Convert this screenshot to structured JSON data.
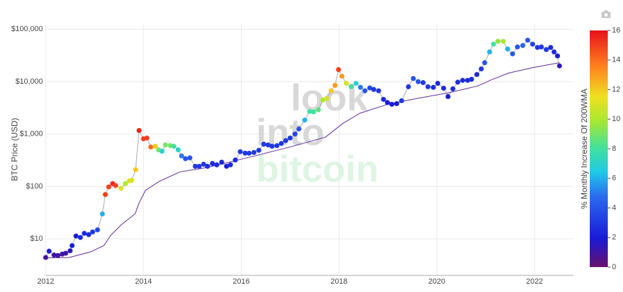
{
  "chart_data": {
    "type": "scatter",
    "y_label": "BTC Price (USD)",
    "colorbar_label": "% Monthly Increase Of 200WMA",
    "watermark": [
      "look",
      "into",
      "bitcoin"
    ],
    "log_y": true,
    "grid": true,
    "xlim": [
      2012,
      2022.79
    ],
    "xticks": [
      2012,
      2014,
      2016,
      2018,
      2020,
      2022
    ],
    "ylim": [
      2,
      125000
    ],
    "yticks": [
      {
        "value": 10,
        "label": "$10"
      },
      {
        "value": 100,
        "label": "$100"
      },
      {
        "value": 1000,
        "label": "$1,000"
      },
      {
        "value": 10000,
        "label": "$10,000"
      },
      {
        "value": 100000,
        "label": "$100,000"
      }
    ],
    "clim": [
      0,
      16
    ],
    "cticks": [
      0,
      2,
      4,
      6,
      8,
      10,
      12,
      14,
      16
    ],
    "colorscale": [
      [
        0,
        "#6b0f6b"
      ],
      [
        0.12,
        "#1a1ad6"
      ],
      [
        0.3,
        "#2a6cf0"
      ],
      [
        0.4,
        "#20c8e8"
      ],
      [
        0.5,
        "#40e0a0"
      ],
      [
        0.62,
        "#a8e830"
      ],
      [
        0.72,
        "#f0e020"
      ],
      [
        0.85,
        "#ff8020"
      ],
      [
        1,
        "#e8101a"
      ]
    ],
    "series": [
      {
        "color": "#aaaaaa",
        "x": [
          2012.0,
          2012.07,
          2012.17,
          2012.25,
          2012.34,
          2012.41,
          2012.5,
          2012.54,
          2012.62,
          2012.71,
          2012.79,
          2012.88,
          2012.96,
          2013.06,
          2013.16,
          2013.22,
          2013.29,
          2013.37,
          2013.43,
          2013.54,
          2013.63,
          2013.71,
          2013.76,
          2013.84,
          2013.91,
          2014.0,
          2014.07,
          2014.15,
          2014.24,
          2014.31,
          2014.38,
          2014.45,
          2014.55,
          2014.62,
          2014.71,
          2014.78,
          2014.86,
          2014.95,
          2015.06,
          2015.14,
          2015.23,
          2015.31,
          2015.41,
          2015.5,
          2015.6,
          2015.7,
          2015.78,
          2015.88,
          2015.98,
          2016.08,
          2016.16,
          2016.26,
          2016.36,
          2016.46,
          2016.55,
          2016.63,
          2016.73,
          2016.82,
          2016.91,
          2017.0,
          2017.1,
          2017.18,
          2017.3,
          2017.4,
          2017.48,
          2017.58,
          2017.67,
          2017.75,
          2017.84,
          2017.92,
          2017.99,
          2018.06,
          2018.15,
          2018.25,
          2018.35,
          2018.44,
          2018.53,
          2018.63,
          2018.71,
          2018.81,
          2018.91,
          2018.99,
          2019.08,
          2019.18,
          2019.28,
          2019.42,
          2019.52,
          2019.62,
          2019.72,
          2019.82,
          2019.93,
          2020.02,
          2020.14,
          2020.23,
          2020.33,
          2020.43,
          2020.53,
          2020.63,
          2020.71,
          2020.82,
          2020.91,
          2020.98,
          2021.08,
          2021.16,
          2021.25,
          2021.36,
          2021.45,
          2021.55,
          2021.65,
          2021.76,
          2021.86,
          2021.96,
          2022.06,
          2022.14,
          2022.24,
          2022.33,
          2022.4,
          2022.47,
          2022.51
        ],
        "values": [
          4.4,
          5.8,
          4.9,
          4.8,
          5.1,
          5.3,
          5.9,
          7.4,
          11.3,
          10.6,
          12.7,
          12,
          13.5,
          14.8,
          29.8,
          70,
          98,
          113,
          104,
          92,
          113,
          128,
          131,
          209,
          1170,
          810,
          840,
          566,
          585,
          499,
          470,
          620,
          600,
          585,
          500,
          382,
          338,
          351,
          242,
          242,
          265,
          242,
          274,
          258,
          290,
          242,
          258,
          320,
          460,
          432,
          430,
          445,
          490,
          640,
          620,
          585,
          600,
          660,
          750,
          840,
          1000,
          1250,
          1850,
          2700,
          2650,
          2920,
          4470,
          4770,
          6700,
          8500,
          17000,
          12700,
          9300,
          8000,
          9300,
          7800,
          6700,
          7600,
          7100,
          6700,
          4600,
          4000,
          3700,
          3800,
          4330,
          8000,
          11500,
          10000,
          9600,
          8000,
          7800,
          9300,
          7500,
          5200,
          7300,
          9800,
          10600,
          10600,
          11100,
          13700,
          17500,
          23000,
          37000,
          52000,
          59000,
          59000,
          42000,
          34000,
          46000,
          49000,
          62000,
          52000,
          45000,
          46000,
          41000,
          45000,
          37000,
          31000,
          20000
        ],
        "heat": [
          1,
          2,
          1,
          1,
          1,
          1,
          1.5,
          2,
          2,
          2.5,
          2.5,
          2.5,
          3,
          3.5,
          6,
          15,
          15,
          15.5,
          15,
          11,
          10,
          11,
          11,
          12,
          15.5,
          15,
          15,
          14,
          12,
          9,
          7,
          9,
          9,
          8,
          7,
          5,
          4,
          4,
          3,
          3,
          3,
          2.5,
          2.5,
          2.5,
          2.5,
          2,
          2.5,
          2.5,
          3,
          3,
          3,
          3,
          3,
          3,
          3,
          3,
          3,
          3,
          3,
          3,
          3.5,
          4,
          6,
          8,
          8,
          8.5,
          10,
          11,
          12,
          13,
          15,
          13,
          11,
          8,
          7,
          5,
          4,
          3.5,
          3,
          3,
          2.5,
          2,
          2,
          2,
          3,
          3,
          4,
          4,
          3,
          3,
          2.5,
          2.5,
          2.5,
          2,
          2.5,
          2.5,
          2.5,
          2.5,
          2.5,
          2.5,
          3,
          4,
          6,
          8,
          9.5,
          10,
          6,
          4,
          4,
          4.5,
          4,
          3.5,
          3,
          3,
          3,
          2.5,
          2.5,
          2,
          1.5
        ]
      },
      {
        "color": "#5b2a96",
        "x": [
          2012.0,
          2012.48,
          2012.91,
          2013.19,
          2013.33,
          2013.54,
          2013.83,
          2013.9,
          2014.04,
          2014.32,
          2014.75,
          2015.31,
          2015.88,
          2016.45,
          2017.01,
          2017.72,
          2018.08,
          2018.43,
          2019.0,
          2019.56,
          2020.27,
          2020.84,
          2021.12,
          2021.48,
          2021.97,
          2022.51
        ],
        "values": [
          4.3,
          4.4,
          5.6,
          7.4,
          11.6,
          18.4,
          30,
          46,
          84,
          124,
          190,
          230,
          310,
          420,
          570,
          870,
          1600,
          2500,
          3700,
          4700,
          6200,
          8300,
          10900,
          14700,
          18600,
          23000
        ]
      }
    ]
  }
}
